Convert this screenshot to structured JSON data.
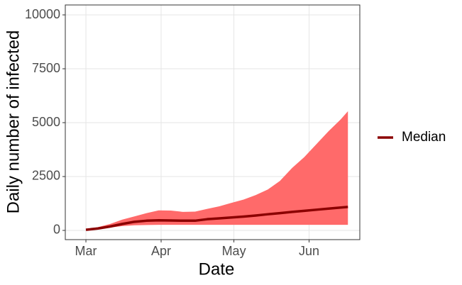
{
  "chart_data": {
    "type": "line",
    "x_label": "Date",
    "y_label": "Daily number of infected",
    "x": [
      0,
      5,
      10,
      15,
      20,
      25,
      30,
      35,
      40,
      45,
      50,
      55,
      60,
      65,
      70,
      75,
      80,
      85,
      90,
      95,
      100,
      105,
      108
    ],
    "series": [
      {
        "name": "Median",
        "color": "#8b0000",
        "values": [
          30,
          90,
          180,
          300,
          400,
          450,
          470,
          460,
          450,
          450,
          520,
          560,
          600,
          640,
          690,
          750,
          800,
          860,
          910,
          960,
          1010,
          1060,
          1090
        ]
      }
    ],
    "band": {
      "color": "#ff6a6a",
      "lower": [
        20,
        60,
        130,
        200,
        240,
        250,
        260,
        260,
        260,
        260,
        260,
        260,
        260,
        260,
        260,
        260,
        260,
        260,
        260,
        260,
        260,
        260,
        260
      ],
      "upper": [
        40,
        150,
        300,
        500,
        650,
        800,
        930,
        920,
        860,
        870,
        1000,
        1120,
        1280,
        1430,
        1640,
        1900,
        2300,
        2900,
        3400,
        4000,
        4600,
        5150,
        5530
      ]
    },
    "xlim": [
      -8.5,
      112.9
    ],
    "xticks": [
      {
        "value": 0,
        "label": "Mar"
      },
      {
        "value": 31,
        "label": "Apr"
      },
      {
        "value": 61,
        "label": "May"
      },
      {
        "value": 92,
        "label": "Jun"
      }
    ],
    "ylim": [
      -428,
      10461
    ],
    "yticks": [
      0,
      2500,
      5000,
      7500,
      10000
    ],
    "grid": true,
    "legend": "right"
  }
}
